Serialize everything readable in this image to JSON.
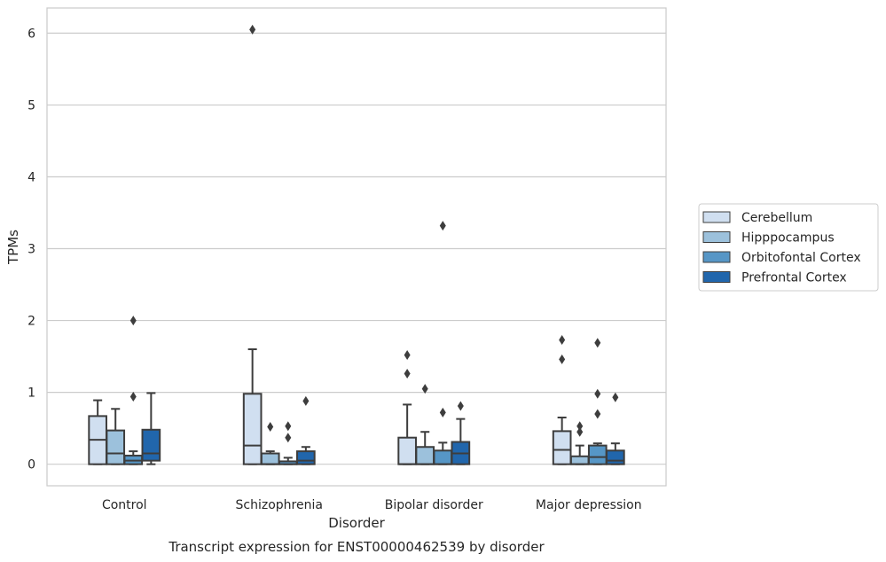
{
  "chart_data": {
    "type": "box",
    "title": "",
    "caption": "Transcript expression for ENST00000462539 by disorder",
    "xlabel": "Disorder",
    "ylabel": "TPMs",
    "ylim": [
      -0.3,
      6.35
    ],
    "yticks": [
      0,
      1,
      2,
      3,
      4,
      5,
      6
    ],
    "grid": "horizontal",
    "legend_position": "right",
    "categories": [
      "Control",
      "Schizophrenia",
      "Bipolar disorder",
      "Major depression"
    ],
    "series": [
      {
        "name": "Cerebellum",
        "color": "#d0dff0",
        "boxes": [
          {
            "whislo": 0.0,
            "q1": 0.0,
            "med": 0.34,
            "q3": 0.67,
            "whishi": 0.89,
            "fliers": []
          },
          {
            "whislo": 0.0,
            "q1": 0.0,
            "med": 0.26,
            "q3": 0.98,
            "whishi": 1.6,
            "fliers": [
              6.05
            ]
          },
          {
            "whislo": 0.0,
            "q1": 0.0,
            "med": 0.0,
            "q3": 0.37,
            "whishi": 0.83,
            "fliers": [
              1.26,
              1.52
            ]
          },
          {
            "whislo": 0.0,
            "q1": 0.0,
            "med": 0.2,
            "q3": 0.46,
            "whishi": 0.65,
            "fliers": [
              1.46,
              1.73
            ]
          }
        ]
      },
      {
        "name": "Hipppocampus",
        "color": "#9cc1dc",
        "boxes": [
          {
            "whislo": 0.0,
            "q1": 0.0,
            "med": 0.15,
            "q3": 0.47,
            "whishi": 0.77,
            "fliers": []
          },
          {
            "whislo": 0.0,
            "q1": 0.0,
            "med": 0.0,
            "q3": 0.15,
            "whishi": 0.18,
            "fliers": [
              0.52
            ]
          },
          {
            "whislo": 0.0,
            "q1": 0.0,
            "med": 0.0,
            "q3": 0.24,
            "whishi": 0.45,
            "fliers": [
              1.05
            ]
          },
          {
            "whislo": 0.0,
            "q1": 0.0,
            "med": 0.0,
            "q3": 0.11,
            "whishi": 0.26,
            "fliers": [
              0.45,
              0.53
            ]
          }
        ]
      },
      {
        "name": "Orbitofontal Cortex",
        "color": "#5696c6",
        "boxes": [
          {
            "whislo": 0.0,
            "q1": 0.0,
            "med": 0.05,
            "q3": 0.12,
            "whishi": 0.18,
            "fliers": [
              0.94,
              2.0
            ]
          },
          {
            "whislo": 0.0,
            "q1": 0.0,
            "med": 0.0,
            "q3": 0.04,
            "whishi": 0.09,
            "fliers": [
              0.37,
              0.53
            ]
          },
          {
            "whislo": 0.0,
            "q1": 0.0,
            "med": 0.0,
            "q3": 0.19,
            "whishi": 0.3,
            "fliers": [
              0.72,
              3.32
            ]
          },
          {
            "whislo": 0.0,
            "q1": 0.0,
            "med": 0.1,
            "q3": 0.26,
            "whishi": 0.29,
            "fliers": [
              0.7,
              0.98,
              1.69
            ]
          }
        ]
      },
      {
        "name": "Prefrontal Cortex",
        "color": "#2166ac",
        "boxes": [
          {
            "whislo": 0.0,
            "q1": 0.05,
            "med": 0.15,
            "q3": 0.48,
            "whishi": 0.99,
            "fliers": []
          },
          {
            "whislo": 0.0,
            "q1": 0.0,
            "med": 0.05,
            "q3": 0.18,
            "whishi": 0.24,
            "fliers": [
              0.88
            ]
          },
          {
            "whislo": 0.0,
            "q1": 0.0,
            "med": 0.15,
            "q3": 0.31,
            "whishi": 0.63,
            "fliers": [
              0.81
            ]
          },
          {
            "whislo": 0.0,
            "q1": 0.0,
            "med": 0.05,
            "q3": 0.19,
            "whishi": 0.29,
            "fliers": [
              0.93
            ]
          }
        ]
      }
    ]
  }
}
